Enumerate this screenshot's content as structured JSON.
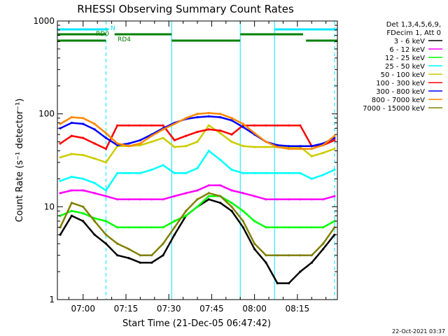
{
  "chart_data": {
    "type": "line",
    "title": "RHESSI Observing Summary Count Rates",
    "xlabel": "Start Time (21-Dec-05 06:47:42)",
    "ylabel": "Count Rate (s⁻¹ detector⁻¹)",
    "y_scale": "log",
    "ylim": [
      1,
      1000
    ],
    "y_ticks": [
      {
        "value": 1,
        "label": "1"
      },
      {
        "value": 10,
        "label": "10"
      },
      {
        "value": 100,
        "label": "100"
      },
      {
        "value": 1000,
        "label": "1000"
      }
    ],
    "xlim": [
      "06:51",
      "08:29"
    ],
    "x_ticks": [
      "07:00",
      "07:15",
      "07:30",
      "07:45",
      "08:00",
      "08:15"
    ],
    "grid": false,
    "legend_position": "right",
    "legend_header": [
      "Det 1,3,4,5,6,9,",
      "FDecim 1, Att 0"
    ],
    "footer_date": "22-Oct-2021 03:37",
    "flags": [
      {
        "label": "N",
        "color": "#00e5ff",
        "intervals": [
          [
            "06:51",
            "07:09"
          ],
          [
            "08:07",
            "08:29"
          ]
        ]
      },
      {
        "label": "RD0",
        "color": "#008000",
        "intervals": [
          [
            "06:51",
            "07:08"
          ],
          [
            "07:11",
            "07:31"
          ],
          [
            "07:55",
            "08:17"
          ]
        ]
      },
      {
        "label": "RD4",
        "color": "#008000",
        "intervals": [
          [
            "06:51",
            "07:08"
          ],
          [
            "07:31",
            "07:55"
          ],
          [
            "08:18",
            "08:29"
          ]
        ]
      }
    ],
    "vlines": [
      {
        "time": "07:08",
        "style": "dashed",
        "color": "#00e5ff"
      },
      {
        "time": "07:31",
        "style": "solid",
        "color": "#00e5ff"
      },
      {
        "time": "07:55",
        "style": "solid",
        "color": "#00e5ff"
      },
      {
        "time": "08:07",
        "style": "solid",
        "color": "#00e5ff"
      },
      {
        "time": "08:28",
        "style": "dashed",
        "color": "#00e5ff"
      }
    ],
    "x": [
      "06:52",
      "06:56",
      "07:00",
      "07:04",
      "07:08",
      "07:12",
      "07:16",
      "07:20",
      "07:24",
      "07:28",
      "07:32",
      "07:36",
      "07:40",
      "07:44",
      "07:48",
      "07:52",
      "07:56",
      "08:00",
      "08:04",
      "08:08",
      "08:12",
      "08:16",
      "08:20",
      "08:24",
      "08:28"
    ],
    "series": [
      {
        "name": "3 - 6 keV",
        "color": "#000000",
        "values": [
          5,
          8,
          7,
          5,
          4,
          3,
          2.8,
          2.5,
          2.5,
          3,
          5,
          8,
          10,
          12,
          11,
          9,
          6,
          3.5,
          2.5,
          1.5,
          1.5,
          2,
          2.5,
          3.5,
          5
        ]
      },
      {
        "name": "6 - 12 keV",
        "color": "#ff00ff",
        "values": [
          14,
          15,
          15,
          14,
          13,
          12,
          12,
          12,
          12,
          12,
          13,
          14,
          15,
          17,
          17,
          15,
          14,
          13,
          12,
          12,
          12,
          12,
          12,
          12,
          13
        ]
      },
      {
        "name": "12 - 25 keV",
        "color": "#00ff00",
        "values": [
          8,
          9,
          8.5,
          7.5,
          7,
          6,
          6,
          6,
          6,
          6,
          7,
          8,
          10,
          13,
          13,
          11,
          9,
          7,
          6,
          6,
          6,
          6,
          6,
          6,
          7
        ]
      },
      {
        "name": "25 - 50 keV",
        "color": "#00ffff",
        "values": [
          19,
          21,
          20,
          18,
          15,
          23,
          23,
          23,
          25,
          28,
          23,
          23,
          26,
          40,
          32,
          25,
          23,
          23,
          23,
          23,
          23,
          23,
          20,
          22,
          25
        ]
      },
      {
        "name": "50 - 100 keV",
        "color": "#cccc00",
        "values": [
          34,
          37,
          36,
          33,
          30,
          45,
          45,
          46,
          50,
          55,
          44,
          45,
          50,
          75,
          62,
          50,
          45,
          44,
          44,
          44,
          44,
          44,
          35,
          38,
          42
        ]
      },
      {
        "name": "100 - 300 keV",
        "color": "#ff0000",
        "values": [
          48,
          58,
          55,
          48,
          42,
          75,
          75,
          75,
          75,
          75,
          52,
          58,
          64,
          68,
          66,
          60,
          75,
          75,
          75,
          75,
          75,
          75,
          45,
          46,
          52
        ]
      },
      {
        "name": "300 - 800 keV",
        "color": "#0000ff",
        "values": [
          70,
          80,
          78,
          68,
          55,
          46,
          48,
          52,
          60,
          70,
          80,
          88,
          92,
          94,
          92,
          85,
          72,
          60,
          50,
          46,
          45,
          45,
          45,
          48,
          55
        ]
      },
      {
        "name": "800 - 7000 keV",
        "color": "#ff8800",
        "values": [
          78,
          92,
          90,
          78,
          62,
          48,
          45,
          48,
          58,
          68,
          78,
          90,
          100,
          102,
          100,
          90,
          78,
          62,
          50,
          44,
          42,
          42,
          42,
          46,
          58
        ]
      },
      {
        "name": "7000 - 15000 keV",
        "color": "#808000",
        "values": [
          6,
          11,
          10,
          7,
          5,
          4,
          3.5,
          3,
          3,
          4,
          6,
          9,
          12,
          14,
          13,
          10,
          7,
          4,
          3,
          3,
          3,
          3,
          3,
          4,
          6
        ]
      }
    ]
  }
}
